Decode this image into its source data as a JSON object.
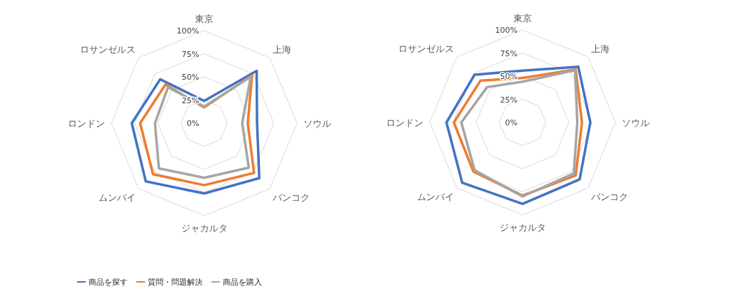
{
  "chart_data": [
    {
      "type": "radar",
      "categories": [
        "東京",
        "上海",
        "ソウル",
        "バンコク",
        "ジャカルタ",
        "ムンバイ",
        "ロンドン",
        "ロサンゼルス"
      ],
      "ylim": [
        0,
        100
      ],
      "yticks": [
        {
          "value": 0,
          "label": "0%"
        },
        {
          "value": 25,
          "label": "25%"
        },
        {
          "value": 50,
          "label": "50%"
        },
        {
          "value": 75,
          "label": "75%"
        },
        {
          "value": 100,
          "label": "100%"
        }
      ],
      "grid": true,
      "legend": "bottom",
      "series": [
        {
          "name": "商品を探す",
          "color": "#4472c4",
          "values": [
            24,
            80,
            57,
            84,
            76,
            89,
            78,
            67
          ]
        },
        {
          "name": "質問・問題解決",
          "color": "#ed7d31",
          "values": [
            17,
            73,
            47,
            76,
            67,
            78,
            69,
            59
          ]
        },
        {
          "name": "商品を購入",
          "color": "#a5a5a5",
          "values": [
            18,
            71,
            41,
            68,
            59,
            69,
            53,
            55
          ]
        }
      ]
    },
    {
      "type": "radar",
      "categories": [
        "東京",
        "上海",
        "ソウル",
        "バンコク",
        "ジャカルタ",
        "ムンバイ",
        "ロンドン",
        "ロサンゼルス"
      ],
      "ylim": [
        0,
        100
      ],
      "yticks": [
        {
          "value": 0,
          "label": "0%"
        },
        {
          "value": 25,
          "label": "25%"
        },
        {
          "value": 50,
          "label": "50%"
        },
        {
          "value": 75,
          "label": "75%"
        },
        {
          "value": 100,
          "label": "100%"
        }
      ],
      "grid": true,
      "series": [
        {
          "color": "#4472c4",
          "values": [
            56,
            85,
            73,
            87,
            88,
            92,
            82,
            73
          ]
        },
        {
          "color": "#ed7d31",
          "values": [
            48,
            81,
            64,
            81,
            79,
            75,
            74,
            64
          ]
        },
        {
          "color": "#a5a5a5",
          "values": [
            44,
            80,
            59,
            78,
            80,
            73,
            66,
            54
          ]
        }
      ]
    }
  ]
}
